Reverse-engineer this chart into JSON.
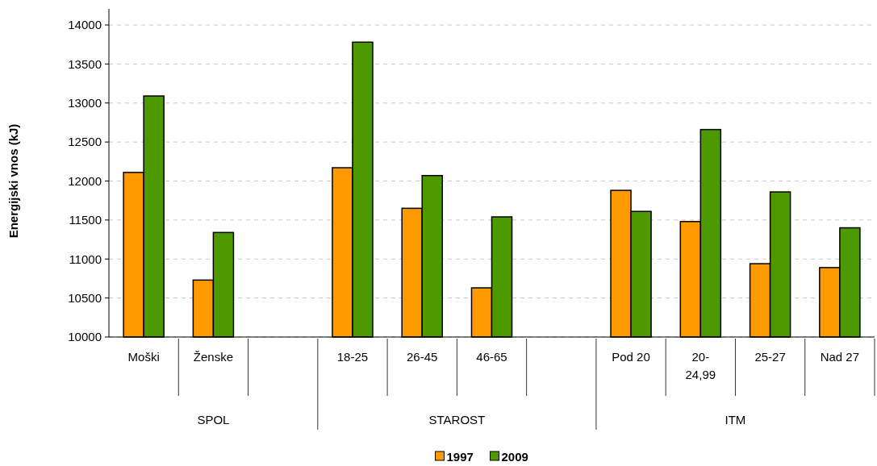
{
  "chart_data": {
    "type": "bar",
    "ylabel": "Energijski vnos (kJ)",
    "categories": [
      "Moški",
      "Ženske",
      null,
      "18-25",
      "26-45",
      "46-65",
      null,
      "Pod 20",
      "20-24,99",
      "25-27",
      "Nad 27"
    ],
    "series": [
      {
        "name": "1997",
        "color": "#ff9900",
        "values": [
          12110,
          10730,
          null,
          12170,
          11650,
          10630,
          null,
          11880,
          11480,
          10940,
          10890
        ]
      },
      {
        "name": "2009",
        "color": "#4c9900",
        "values": [
          13090,
          11340,
          null,
          13780,
          12070,
          11540,
          null,
          11610,
          12660,
          11860,
          11400
        ]
      }
    ],
    "annotations": [
      "SPOL",
      "STAROST",
      "ITM"
    ],
    "ylim": [
      10000,
      14000
    ],
    "yticks": [
      10000,
      10500,
      11000,
      11500,
      12000,
      12500,
      13000,
      13500,
      14000
    ],
    "grid": "y",
    "legend": "bottom"
  }
}
